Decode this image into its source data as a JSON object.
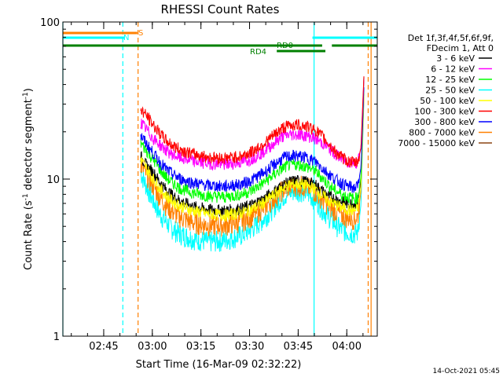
{
  "chart_data": {
    "type": "line",
    "title": "RHESSI Count Rates",
    "xlabel": "Start Time (16-Mar-09 02:32:22)",
    "ylabel_parts": [
      "Count Rate (s",
      "-1",
      " detector segment",
      "-1",
      ")"
    ],
    "x_unit": "minutes since 02:32:22",
    "xlim": [
      0,
      97
    ],
    "ylim": [
      1,
      100
    ],
    "yscale": "log",
    "x_ticks": [
      {
        "label": "02:45",
        "x": 12.6
      },
      {
        "label": "03:00",
        "x": 27.6
      },
      {
        "label": "03:15",
        "x": 42.6
      },
      {
        "label": "03:30",
        "x": 57.6
      },
      {
        "label": "03:45",
        "x": 72.6
      },
      {
        "label": "04:00",
        "x": 87.6
      }
    ],
    "y_ticks": [
      {
        "label": "1",
        "y": 1
      },
      {
        "label": "10",
        "y": 10
      },
      {
        "label": "100",
        "y": 100
      }
    ],
    "legend": {
      "position": "right",
      "header": [
        "Det 1f,3f,4f,5f,6f,9f,",
        "FDecim 1, Att 0"
      ]
    },
    "series": [
      {
        "name": "3 - 6 keV",
        "color": "#000000",
        "x": [
          24,
          26,
          28,
          30,
          32,
          34,
          36,
          40,
          45,
          50,
          55,
          58,
          62,
          66,
          68,
          70,
          72,
          74,
          76,
          78,
          80,
          82,
          84,
          86,
          88,
          90,
          91,
          92,
          93
        ],
        "values": [
          14,
          12,
          11,
          9.5,
          8.5,
          7.8,
          7.3,
          6.7,
          6.4,
          6.3,
          6.5,
          6.8,
          7.5,
          8.6,
          9.2,
          9.6,
          9.8,
          9.7,
          9.5,
          9.2,
          8.4,
          7.8,
          7.5,
          7.2,
          7.0,
          7.0,
          7.2,
          10,
          55
        ]
      },
      {
        "name": "6 - 12 keV",
        "color": "#ff00ff",
        "x": [
          24,
          26,
          28,
          30,
          32,
          34,
          36,
          40,
          45,
          50,
          55,
          58,
          62,
          66,
          68,
          70,
          72,
          74,
          76,
          78,
          80,
          82,
          84,
          86,
          88,
          90,
          91,
          92,
          93
        ],
        "values": [
          23,
          20.5,
          18,
          16.5,
          15.2,
          14.3,
          13.7,
          13,
          12.6,
          12.4,
          12.8,
          13.4,
          15,
          17.5,
          18.8,
          19.2,
          19.3,
          19.1,
          18.7,
          18.1,
          17,
          15.8,
          14.5,
          13.5,
          12.9,
          12.7,
          12.9,
          16,
          50
        ]
      },
      {
        "name": "12 - 25 keV",
        "color": "#00ff00",
        "x": [
          24,
          26,
          28,
          30,
          32,
          34,
          36,
          40,
          45,
          50,
          55,
          58,
          62,
          66,
          68,
          70,
          72,
          74,
          76,
          78,
          80,
          82,
          84,
          86,
          88,
          90,
          91,
          92,
          93
        ],
        "values": [
          17,
          15,
          13.2,
          11.5,
          10.2,
          9.4,
          8.8,
          8.2,
          7.8,
          7.7,
          8.0,
          8.4,
          9.5,
          11,
          11.8,
          12.3,
          12.4,
          12.2,
          11.8,
          11.2,
          10.2,
          9.2,
          8.5,
          8.0,
          7.7,
          7.5,
          7.7,
          10.5,
          45
        ]
      },
      {
        "name": "25 - 50 keV",
        "color": "#00ffff",
        "x": [
          24,
          26,
          28,
          30,
          32,
          34,
          36,
          40,
          45,
          50,
          55,
          58,
          62,
          66,
          68,
          70,
          72,
          74,
          76,
          78,
          80,
          82,
          84,
          86,
          88,
          90,
          91,
          92,
          93
        ],
        "values": [
          11,
          8.8,
          7.2,
          6.0,
          5.3,
          4.8,
          4.5,
          4.2,
          4.0,
          4.1,
          4.4,
          4.8,
          5.6,
          7.0,
          7.8,
          8.3,
          8.5,
          8.4,
          8.0,
          7.4,
          6.5,
          5.8,
          5.2,
          4.8,
          4.6,
          4.5,
          4.6,
          7,
          40
        ]
      },
      {
        "name": "50 - 100 keV",
        "color": "#ffff00",
        "x": [
          24,
          26,
          28,
          30,
          32,
          34,
          36,
          40,
          45,
          50,
          55,
          58,
          62,
          66,
          68,
          70,
          72,
          74,
          76,
          78,
          80,
          82,
          84,
          86,
          88,
          90,
          91,
          92,
          93
        ],
        "values": [
          13.5,
          11.5,
          10,
          8.7,
          7.8,
          7.2,
          6.8,
          6.3,
          6.0,
          5.9,
          6.1,
          6.4,
          7.1,
          8.2,
          8.8,
          9.2,
          9.3,
          9.2,
          9.0,
          8.6,
          7.9,
          7.3,
          6.9,
          6.6,
          6.4,
          6.3,
          6.5,
          9,
          42
        ]
      },
      {
        "name": "100 - 300 keV",
        "color": "#ff0000",
        "x": [
          24,
          26,
          28,
          30,
          32,
          34,
          36,
          40,
          45,
          50,
          55,
          58,
          62,
          66,
          68,
          70,
          72,
          74,
          76,
          78,
          80,
          82,
          84,
          86,
          88,
          90,
          91,
          92,
          93
        ],
        "values": [
          28,
          25,
          22,
          19.5,
          17.5,
          16.3,
          15.5,
          14.5,
          13.8,
          13.6,
          14,
          14.8,
          16.8,
          19.8,
          21.3,
          22,
          22.2,
          22,
          21.4,
          20.5,
          18.7,
          16.8,
          15,
          13.8,
          13,
          12.7,
          12.9,
          16,
          52
        ]
      },
      {
        "name": "300 - 800 keV",
        "color": "#0000ff",
        "x": [
          24,
          26,
          28,
          30,
          32,
          34,
          36,
          40,
          45,
          50,
          55,
          58,
          62,
          66,
          68,
          70,
          72,
          74,
          76,
          78,
          80,
          82,
          84,
          86,
          88,
          90,
          91,
          92,
          93
        ],
        "values": [
          19,
          16.5,
          14.5,
          12.8,
          11.5,
          10.7,
          10.1,
          9.5,
          9.1,
          9.0,
          9.3,
          9.8,
          11,
          12.7,
          13.6,
          14,
          14.1,
          13.9,
          13.5,
          12.9,
          11.8,
          10.8,
          10,
          9.4,
          9.0,
          8.8,
          9.0,
          12,
          45
        ]
      },
      {
        "name": "800 - 7000 keV",
        "color": "#ff8000",
        "x": [
          24,
          26,
          28,
          30,
          32,
          34,
          36,
          40,
          45,
          50,
          55,
          58,
          62,
          66,
          68,
          70,
          72,
          74,
          76,
          78,
          80,
          82,
          84,
          86,
          88,
          90,
          91,
          92,
          93
        ],
        "values": [
          12.5,
          10.5,
          9.0,
          7.7,
          6.8,
          6.2,
          5.8,
          5.3,
          5.1,
          5.1,
          5.4,
          5.8,
          6.6,
          7.9,
          8.6,
          9.0,
          9.2,
          9.1,
          8.8,
          8.3,
          7.5,
          6.8,
          6.3,
          5.9,
          5.7,
          5.6,
          5.8,
          8.5,
          40
        ]
      },
      {
        "name": "7000 - 15000 keV",
        "color": "#8b4513",
        "x": [],
        "values": []
      }
    ],
    "annotations": {
      "flags": [
        {
          "label": "S",
          "color": "#ff8000",
          "segments": [
            [
              0,
              23
            ]
          ]
        },
        {
          "label": "N",
          "color": "#00ffff",
          "segments": [
            [
              0,
              19
            ],
            [
              77,
              97
            ]
          ]
        },
        {
          "label": "RD0",
          "color": "#008000",
          "segments": [
            [
              0,
              80
            ],
            [
              83,
              97
            ]
          ]
        },
        {
          "label": "RD4",
          "color": "#008000",
          "segments": [
            [
              66,
              81
            ]
          ]
        }
      ],
      "vertical_lines": [
        {
          "x": 0,
          "color": "#00ffff",
          "dashed": false
        },
        {
          "x": 18.5,
          "color": "#00ffff",
          "dashed": true
        },
        {
          "x": 23.2,
          "color": "#ff8000",
          "dashed": true
        },
        {
          "x": 77.5,
          "color": "#00ffff",
          "dashed": false
        },
        {
          "x": 94.2,
          "color": "#ff8000",
          "dashed": true
        },
        {
          "x": 95.1,
          "color": "#ff8000",
          "dashed": false
        }
      ]
    }
  },
  "footer_timestamp": "14-Oct-2021 05:45"
}
